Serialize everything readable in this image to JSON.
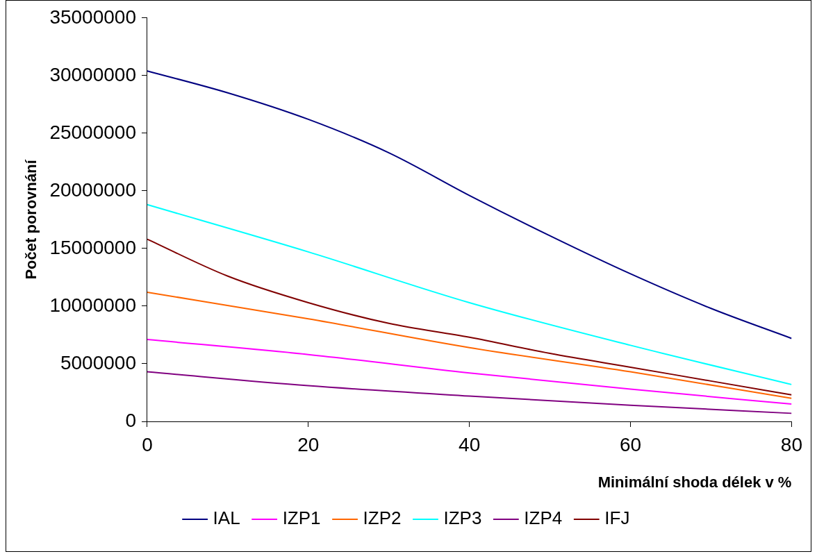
{
  "chart_data": {
    "type": "line",
    "xlabel": "Minimální shoda délek v %",
    "ylabel": "Počet porovnání",
    "xlim": [
      0,
      80
    ],
    "xticks": [
      0,
      20,
      40,
      60,
      80
    ],
    "ylim": [
      0,
      35000000
    ],
    "yticks": [
      0,
      5000000,
      10000000,
      15000000,
      20000000,
      25000000,
      30000000,
      35000000
    ],
    "grid": false,
    "legend": "bottom",
    "marker": "none",
    "line_style": "solid",
    "series": [
      {
        "name": "IAL",
        "color": "#000080",
        "x": [
          0,
          10,
          20,
          30,
          40,
          50,
          60,
          70,
          80
        ],
        "values": [
          30400000,
          28500000,
          26200000,
          23300000,
          19600000,
          16100000,
          12800000,
          9800000,
          7200000
        ]
      },
      {
        "name": "IZP1",
        "color": "#ff00ff",
        "x": [
          0,
          20,
          40,
          60,
          80
        ],
        "values": [
          7100000,
          5800000,
          4200000,
          2800000,
          1500000
        ]
      },
      {
        "name": "IZP2",
        "color": "#ff6600",
        "x": [
          0,
          20,
          40,
          60,
          80
        ],
        "values": [
          11200000,
          8900000,
          6400000,
          4300000,
          2000000
        ]
      },
      {
        "name": "IZP3",
        "color": "#00ffff",
        "x": [
          0,
          20,
          40,
          60,
          80
        ],
        "values": [
          18800000,
          14700000,
          10300000,
          6600000,
          3200000
        ]
      },
      {
        "name": "IZP4",
        "color": "#800080",
        "x": [
          0,
          20,
          40,
          60,
          80
        ],
        "values": [
          4300000,
          3100000,
          2200000,
          1400000,
          700000
        ]
      },
      {
        "name": "IFJ",
        "color": "#800000",
        "x": [
          0,
          10,
          20,
          30,
          40,
          50,
          60,
          70,
          80
        ],
        "values": [
          15800000,
          12600000,
          10300000,
          8500000,
          7300000,
          5900000,
          4700000,
          3500000,
          2300000
        ]
      }
    ]
  }
}
